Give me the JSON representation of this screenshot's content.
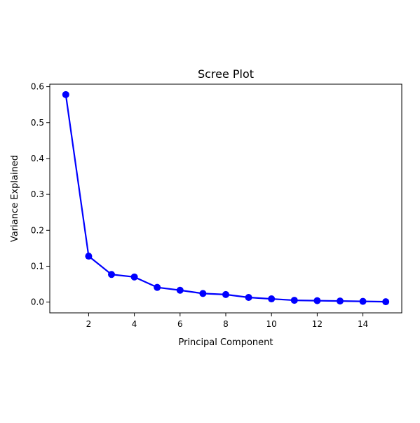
{
  "chart_data": {
    "type": "line",
    "title": "Scree Plot",
    "xlabel": "Principal Component",
    "ylabel": "Variance Explained",
    "xlim": [
      0.3,
      15.7
    ],
    "ylim": [
      -0.03,
      0.607
    ],
    "xticks": [
      2,
      4,
      6,
      8,
      10,
      12,
      14
    ],
    "yticks": [
      0.0,
      0.1,
      0.2,
      0.3,
      0.4,
      0.5,
      0.6
    ],
    "ytick_labels": [
      "0.0",
      "0.1",
      "0.2",
      "0.3",
      "0.4",
      "0.5",
      "0.6"
    ],
    "grid": false,
    "series": [
      {
        "color": "#0000ff",
        "marker": "circle",
        "x": [
          1,
          2,
          3,
          4,
          5,
          6,
          7,
          8,
          9,
          10,
          11,
          12,
          13,
          14,
          15
        ],
        "values": [
          0.578,
          0.128,
          0.077,
          0.07,
          0.041,
          0.033,
          0.024,
          0.021,
          0.013,
          0.009,
          0.005,
          0.004,
          0.003,
          0.002,
          0.001
        ]
      }
    ]
  }
}
